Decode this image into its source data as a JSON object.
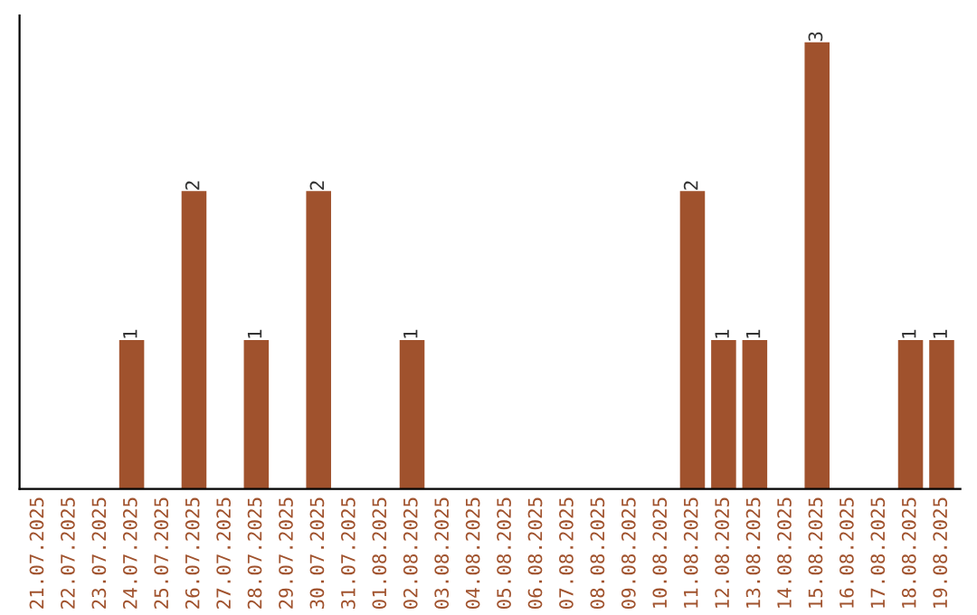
{
  "chart_data": {
    "type": "bar",
    "categories": [
      "21.07.2025",
      "22.07.2025",
      "23.07.2025",
      "24.07.2025",
      "25.07.2025",
      "26.07.2025",
      "27.07.2025",
      "28.07.2025",
      "29.07.2025",
      "30.07.2025",
      "31.07.2025",
      "01.08.2025",
      "02.08.2025",
      "03.08.2025",
      "04.08.2025",
      "05.08.2025",
      "06.08.2025",
      "07.08.2025",
      "08.08.2025",
      "09.08.2025",
      "10.08.2025",
      "11.08.2025",
      "12.08.2025",
      "13.08.2025",
      "14.08.2025",
      "15.08.2025",
      "16.08.2025",
      "17.08.2025",
      "18.08.2025",
      "19.08.2025"
    ],
    "values": [
      0,
      0,
      0,
      1,
      0,
      2,
      0,
      1,
      0,
      2,
      0,
      0,
      1,
      0,
      0,
      0,
      0,
      0,
      0,
      0,
      0,
      2,
      1,
      1,
      0,
      3,
      0,
      0,
      1,
      1
    ],
    "value_labels": [
      null,
      null,
      null,
      "1",
      null,
      "2",
      null,
      "1",
      null,
      "2",
      null,
      null,
      "1",
      null,
      null,
      null,
      null,
      null,
      null,
      null,
      null,
      "2",
      "1",
      "1",
      null,
      "3",
      null,
      null,
      "1",
      "1"
    ],
    "color": "#a0522d",
    "tick_labels": "x",
    "grid": false,
    "legend": false
  }
}
